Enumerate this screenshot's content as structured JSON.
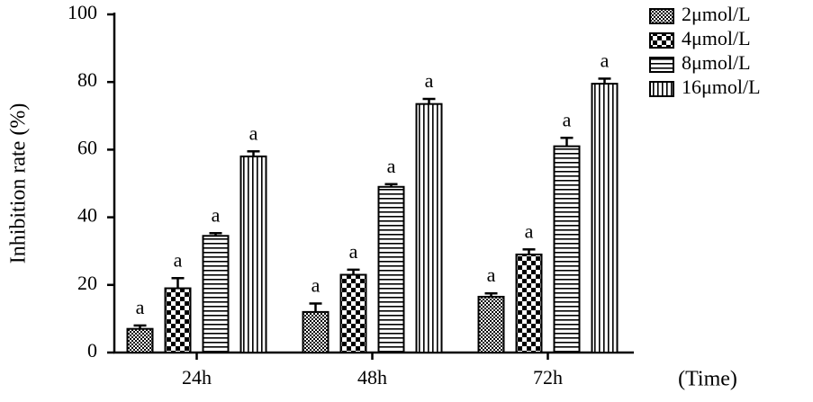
{
  "chart_data": {
    "type": "bar",
    "y_label": "Inhibition rate (%)",
    "x_label": "(Time)",
    "categories": [
      "24h",
      "48h",
      "72h"
    ],
    "ylim": [
      0,
      100
    ],
    "yticks": [
      0,
      20,
      40,
      60,
      80,
      100
    ],
    "legend": "top-right",
    "series": [
      {
        "name": "2μmol/L",
        "color": "#000000",
        "pattern": "fine-checker",
        "values": [
          7,
          12,
          16.5
        ],
        "errors": [
          1,
          2.5,
          1
        ],
        "labels": [
          "a",
          "a",
          "a"
        ]
      },
      {
        "name": "4μmol/L",
        "color": "#000000",
        "pattern": "checker",
        "values": [
          19,
          23,
          29
        ],
        "errors": [
          3,
          1.5,
          1.5
        ],
        "labels": [
          "a",
          "a",
          "a"
        ]
      },
      {
        "name": "8μmol/L",
        "color": "#000000",
        "pattern": "horizontal",
        "values": [
          34.5,
          49,
          61
        ],
        "errors": [
          0.8,
          0.8,
          2.5
        ],
        "labels": [
          "a",
          "a",
          "a"
        ]
      },
      {
        "name": "16μmol/L",
        "color": "#000000",
        "pattern": "vertical",
        "values": [
          58,
          73.5,
          79.5
        ],
        "errors": [
          1.5,
          1.5,
          1.5
        ],
        "labels": [
          "a",
          "a",
          "a"
        ]
      }
    ]
  }
}
